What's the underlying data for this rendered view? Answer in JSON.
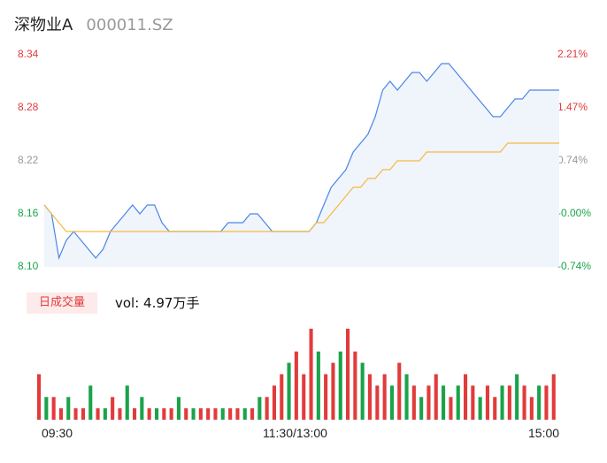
{
  "header": {
    "name": "深物业A",
    "code": "000011.SZ"
  },
  "price_axis": [
    {
      "label": "8.34",
      "color": "#e23b3b"
    },
    {
      "label": "8.28",
      "color": "#e23b3b"
    },
    {
      "label": "8.22",
      "color": "#999999"
    },
    {
      "label": "8.16",
      "color": "#1aa34a"
    },
    {
      "label": "8.10",
      "color": "#1aa34a"
    }
  ],
  "pct_axis": [
    {
      "label": "2.21%",
      "color": "#e23b3b"
    },
    {
      "label": "1.47%",
      "color": "#e23b3b"
    },
    {
      "label": "0.74%",
      "color": "#999999"
    },
    {
      "label": "-0.00%",
      "color": "#1aa34a"
    },
    {
      "label": "-0.74%",
      "color": "#1aa34a"
    }
  ],
  "volume": {
    "badge": "日成交量",
    "text": "vol: 4.97万手"
  },
  "time_axis": [
    "09:30",
    "11:30/13:00",
    "15:00"
  ],
  "colors": {
    "price_line": "#4a86e8",
    "avg_line": "#f5b942",
    "up": "#e23b3b",
    "down": "#1aa34a",
    "fill": "#f0f4fb"
  },
  "chart_data": [
    {
      "type": "line",
      "title": "",
      "xlabel": "",
      "ylabel": "",
      "ylim": [
        8.1,
        8.34
      ],
      "x_ticks": [
        "09:30",
        "11:30/13:00",
        "15:00"
      ],
      "series": [
        {
          "name": "",
          "style": "price",
          "values": [
            8.17,
            8.16,
            8.11,
            8.13,
            8.14,
            8.13,
            8.12,
            8.11,
            8.12,
            8.14,
            8.15,
            8.16,
            8.17,
            8.16,
            8.17,
            8.17,
            8.15,
            8.14,
            8.14,
            8.14,
            8.14,
            8.14,
            8.14,
            8.14,
            8.14,
            8.15,
            8.15,
            8.15,
            8.16,
            8.16,
            8.15,
            8.14,
            8.14,
            8.14,
            8.14,
            8.14,
            8.14,
            8.15,
            8.17,
            8.19,
            8.2,
            8.21,
            8.23,
            8.24,
            8.25,
            8.27,
            8.3,
            8.31,
            8.3,
            8.31,
            8.32,
            8.32,
            8.31,
            8.32,
            8.33,
            8.33,
            8.32,
            8.31,
            8.3,
            8.29,
            8.28,
            8.27,
            8.27,
            8.28,
            8.29,
            8.29,
            8.3,
            8.3,
            8.3,
            8.3,
            8.3
          ]
        },
        {
          "name": "",
          "style": "average",
          "values": [
            8.17,
            8.16,
            8.15,
            8.14,
            8.14,
            8.14,
            8.14,
            8.14,
            8.14,
            8.14,
            8.14,
            8.14,
            8.14,
            8.14,
            8.14,
            8.14,
            8.14,
            8.14,
            8.14,
            8.14,
            8.14,
            8.14,
            8.14,
            8.14,
            8.14,
            8.14,
            8.14,
            8.14,
            8.14,
            8.14,
            8.14,
            8.14,
            8.14,
            8.14,
            8.14,
            8.14,
            8.14,
            8.15,
            8.15,
            8.16,
            8.17,
            8.18,
            8.19,
            8.19,
            8.2,
            8.2,
            8.21,
            8.21,
            8.22,
            8.22,
            8.22,
            8.22,
            8.23,
            8.23,
            8.23,
            8.23,
            8.23,
            8.23,
            8.23,
            8.23,
            8.23,
            8.23,
            8.23,
            8.24,
            8.24,
            8.24,
            8.24,
            8.24,
            8.24,
            8.24,
            8.24
          ]
        }
      ]
    },
    {
      "type": "bar",
      "title": "",
      "xlabel": "",
      "ylabel": "",
      "values": [
        4,
        2,
        2,
        1,
        2,
        1,
        1,
        3,
        1,
        1,
        2,
        1,
        3,
        1,
        2,
        1,
        1,
        1,
        1,
        2,
        1,
        1,
        1,
        1,
        1,
        1,
        1,
        1,
        1,
        1,
        2,
        2,
        3,
        4,
        5,
        6,
        4,
        8,
        6,
        4,
        5,
        6,
        8,
        6,
        5,
        4,
        3,
        4,
        3,
        5,
        4,
        3,
        2,
        3,
        4,
        3,
        2,
        3,
        4,
        3,
        2,
        3,
        2,
        3,
        3,
        4,
        3,
        2,
        3,
        3,
        4
      ],
      "directions": [
        "up",
        "down",
        "up",
        "up",
        "down",
        "up",
        "up",
        "down",
        "up",
        "down",
        "up",
        "up",
        "down",
        "up",
        "down",
        "up",
        "down",
        "up",
        "up",
        "down",
        "up",
        "down",
        "up",
        "up",
        "up",
        "down",
        "up",
        "up",
        "down",
        "up",
        "down",
        "up",
        "up",
        "up",
        "down",
        "up",
        "up",
        "up",
        "down",
        "up",
        "up",
        "down",
        "up",
        "up",
        "down",
        "up",
        "up",
        "up",
        "down",
        "up",
        "down",
        "up",
        "down",
        "up",
        "up",
        "down",
        "up",
        "down",
        "up",
        "up",
        "down",
        "up",
        "up",
        "down",
        "up",
        "down",
        "up",
        "up",
        "down",
        "up",
        "up"
      ]
    }
  ]
}
